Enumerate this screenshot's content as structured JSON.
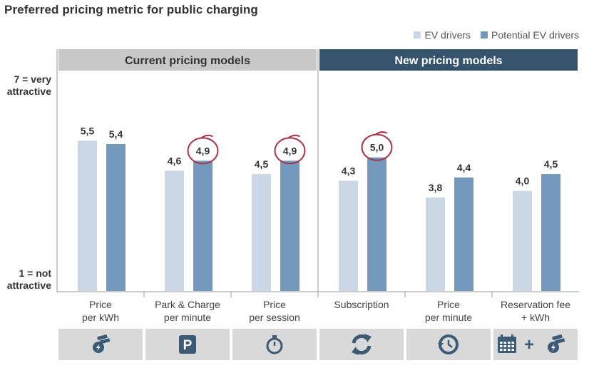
{
  "title": "Preferred  pricing metric for public charging",
  "legend": {
    "ev": "EV drivers",
    "potential": "Potential EV drivers"
  },
  "colors": {
    "ev": "#cbd7e4",
    "potential": "#7599bd",
    "current_header": "#c8c8c8",
    "new_header": "#36536d",
    "circle": "#a83246",
    "icon_bg": "#d9d9d9",
    "icon_fg": "#3c5a75"
  },
  "yaxis": {
    "top_label": [
      "7 = very",
      "attractive"
    ],
    "bottom_label": [
      "1 = not",
      "attractive"
    ]
  },
  "groups": [
    {
      "label": "Current pricing models",
      "categories": [
        0,
        1,
        2
      ]
    },
    {
      "label": "New pricing models",
      "categories": [
        3,
        4,
        5
      ]
    }
  ],
  "icons": [
    "money-bolt-icon",
    "parking-icon",
    "stopwatch-icon",
    "refresh-icon",
    "clock-icon",
    "calendar-plus-money-icon"
  ],
  "chart_data": {
    "type": "bar",
    "categories": [
      [
        "Price",
        "per kWh"
      ],
      [
        "Park & Charge",
        "per minute"
      ],
      [
        "Price",
        "per session"
      ],
      [
        "Subscription"
      ],
      [
        "Price",
        "per minute"
      ],
      [
        "Reservation fee",
        "+ kWh"
      ]
    ],
    "series": [
      {
        "name": "EV drivers",
        "values": [
          5.5,
          4.6,
          4.5,
          4.3,
          3.8,
          4.0
        ],
        "labels": [
          "5,5",
          "4,6",
          "4,5",
          "4,3",
          "3,8",
          "4,0"
        ]
      },
      {
        "name": "Potential EV drivers",
        "values": [
          5.4,
          4.9,
          4.9,
          5.0,
          4.4,
          4.5
        ],
        "labels": [
          "5,4",
          "4,9",
          "4,9",
          "5,0",
          "4,4",
          "4,5"
        ]
      }
    ],
    "ylim": [
      1,
      7
    ],
    "highlighted": [
      {
        "series": 1,
        "index": 1
      },
      {
        "series": 1,
        "index": 2
      },
      {
        "series": 1,
        "index": 3
      }
    ]
  }
}
